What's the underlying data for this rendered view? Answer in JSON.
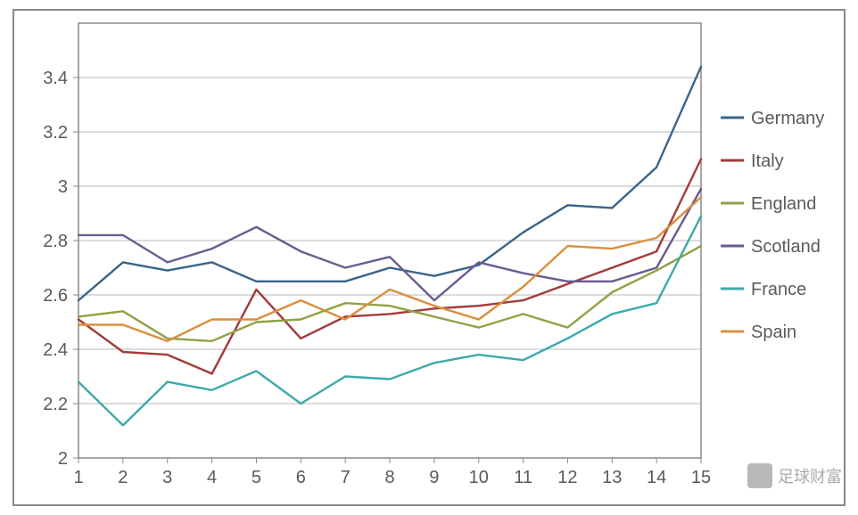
{
  "chart": {
    "type": "line",
    "background_color": "#ffffff",
    "plot_border_color": "#8a8a8a",
    "grid_color": "#b8b8b8",
    "axis_color": "#8a8a8a",
    "tick_font_size": 20,
    "tick_color": "#5a5a5a",
    "legend_font_size": 20,
    "legend_text_color": "#5a5a5a",
    "line_width": 2.4,
    "x": {
      "categories": [
        "1",
        "2",
        "3",
        "4",
        "5",
        "6",
        "7",
        "8",
        "9",
        "10",
        "11",
        "12",
        "13",
        "14",
        "15"
      ],
      "min": 1,
      "max": 15
    },
    "y": {
      "min": 2.0,
      "max": 3.6,
      "ticks": [
        2.0,
        2.2,
        2.4,
        2.6,
        2.8,
        3.0,
        3.2,
        3.4
      ],
      "tick_labels": [
        "2",
        "2.2",
        "2.4",
        "2.6",
        "2.8",
        "3",
        "3.2",
        "3.4"
      ]
    },
    "series": [
      {
        "name": "Germany",
        "color": "#39648b",
        "values": [
          2.58,
          2.72,
          2.69,
          2.72,
          2.65,
          2.65,
          2.65,
          2.7,
          2.67,
          2.71,
          2.83,
          2.93,
          2.92,
          3.07,
          3.44
        ]
      },
      {
        "name": "Italy",
        "color": "#a23a3a",
        "values": [
          2.51,
          2.39,
          2.38,
          2.31,
          2.62,
          2.44,
          2.52,
          2.53,
          2.55,
          2.56,
          2.58,
          2.64,
          2.7,
          2.76,
          3.1
        ]
      },
      {
        "name": "England",
        "color": "#8fa344",
        "values": [
          2.52,
          2.54,
          2.44,
          2.43,
          2.5,
          2.51,
          2.57,
          2.56,
          2.52,
          2.48,
          2.53,
          2.48,
          2.61,
          2.69,
          2.78
        ]
      },
      {
        "name": "Scotland",
        "color": "#6b5a90",
        "values": [
          2.82,
          2.82,
          2.72,
          2.77,
          2.85,
          2.76,
          2.7,
          2.74,
          2.58,
          2.72,
          2.68,
          2.65,
          2.65,
          2.7,
          2.99
        ]
      },
      {
        "name": "France",
        "color": "#3fa9aa",
        "values": [
          2.28,
          2.12,
          2.28,
          2.25,
          2.32,
          2.2,
          2.3,
          2.29,
          2.35,
          2.38,
          2.36,
          2.44,
          2.53,
          2.57,
          2.89
        ]
      },
      {
        "name": "Spain",
        "color": "#d98f3d",
        "values": [
          2.49,
          2.49,
          2.43,
          2.51,
          2.51,
          2.58,
          2.51,
          2.62,
          2.56,
          2.51,
          2.63,
          2.78,
          2.77,
          2.81,
          2.96
        ]
      }
    ]
  },
  "watermark": {
    "text": "足球财富",
    "text_color": "#666666"
  }
}
